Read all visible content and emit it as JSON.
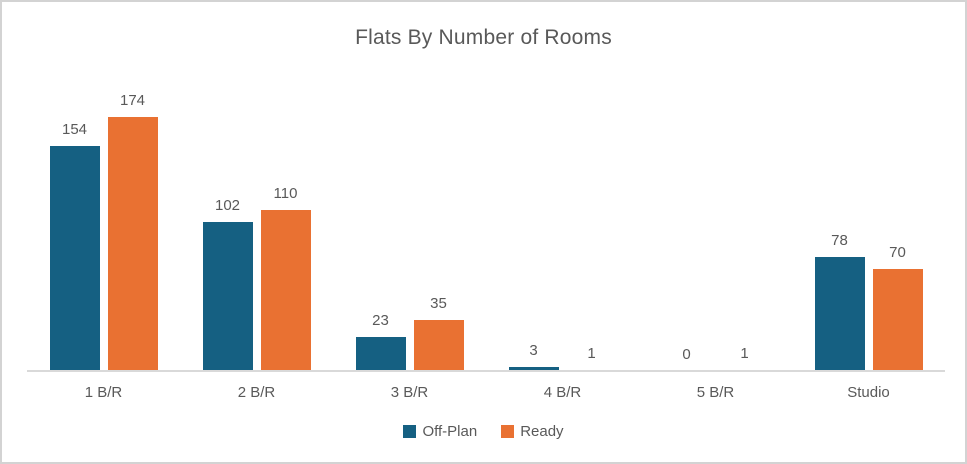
{
  "chart": {
    "title": "Flats By Number of Rooms"
  },
  "chart_data": {
    "type": "bar",
    "title": "Flats By Number of Rooms",
    "categories": [
      "1 B/R",
      "2 B/R",
      "3 B/R",
      "4 B/R",
      "5 B/R",
      "Studio"
    ],
    "series": [
      {
        "name": "Off-Plan",
        "color": "#156082",
        "values": [
          154,
          102,
          23,
          3,
          0,
          78
        ]
      },
      {
        "name": "Ready",
        "color": "#E97132",
        "values": [
          174,
          110,
          35,
          1,
          1,
          70
        ]
      }
    ],
    "xlabel": "",
    "ylabel": "",
    "ylim": [
      0,
      180
    ],
    "grid": false,
    "data_labels": true,
    "legend_position": "bottom"
  },
  "colors": {
    "series_offplan": "#156082",
    "series_ready": "#E97132",
    "text": "#595959",
    "axis_line": "#d9d9d9",
    "frame_border": "#d3d3d3",
    "background": "#ffffff"
  }
}
